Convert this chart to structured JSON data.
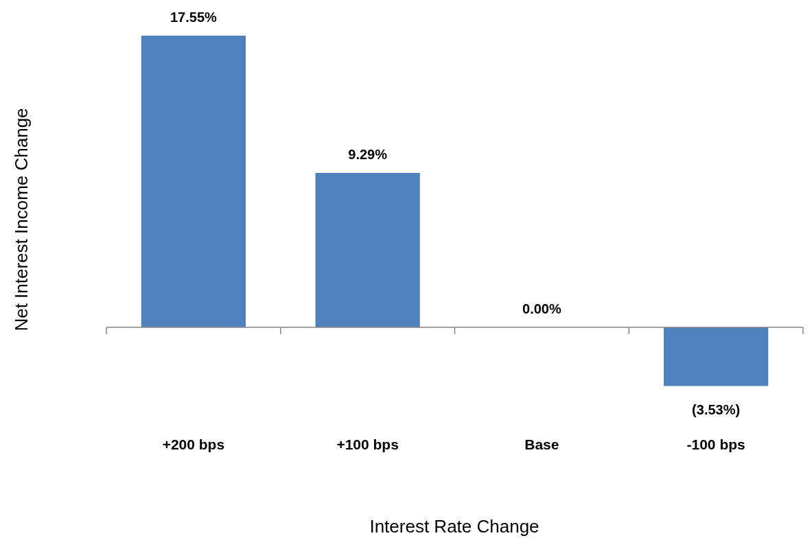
{
  "chart_data": {
    "type": "bar",
    "xlabel": "Interest Rate Change",
    "ylabel": "Net Interest Income Change",
    "categories": [
      "+200 bps",
      "+100 bps",
      "Base",
      "-100 bps"
    ],
    "values": [
      17.55,
      9.29,
      0,
      -3.53
    ],
    "value_labels": [
      "17.55%",
      "9.29%",
      "0.00%",
      "(3.53%)"
    ],
    "color": "#4f81bd"
  }
}
